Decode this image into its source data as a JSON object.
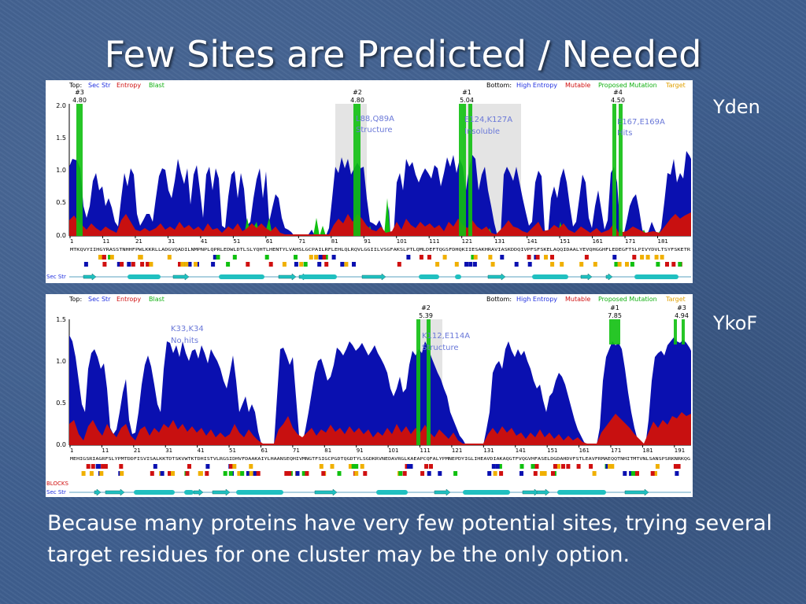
{
  "slide": {
    "title": "Few Sites are Predicted / Needed",
    "body": "Because many proteins have very few potential sites, trying several target residues for one cluster may be the only option."
  },
  "legend": {
    "top_label": "Top:",
    "sec_str": "Sec Str",
    "entropy": "Entropy",
    "blast": "Blast",
    "bottom_label": "Bottom:",
    "high_entropy": "High Entropy",
    "mutable": "Mutable",
    "proposed_mutation": "Proposed Mutation",
    "target": "Target"
  },
  "colors": {
    "entropy": "#0a10b0",
    "mutable": "#d01010",
    "blast": "#10c010",
    "target": "#f0b000",
    "secstr": "#20c0c0"
  },
  "panels": [
    {
      "side_label": "Yden",
      "y_ticks": [
        "2.0",
        "1.5",
        "1.0",
        "0.5",
        "0.0"
      ],
      "x_ticks": [
        "1",
        "11",
        "21",
        "31",
        "41",
        "51",
        "61",
        "71",
        "81",
        "91",
        "101",
        "111",
        "121",
        "131",
        "141",
        "151",
        "161",
        "171",
        "181"
      ],
      "sequence": "MTKQVYIIHGYRASSTNHHFPWLKKRLLADGVQADILNMPNPLQPRLEDWLDTLSLYQHTLHENTYLVAHSLGCPAILRFLEHLQLRQVLGGIILVSGFAKSLPTLQMLDEFTQGSFDHQKIIESAKHRAVIASKDDQIVPFSFSKELAQQIDAALYEVQHGGHFLEDEGFTSLPIVYDVLTSYFSKETR",
      "sites": [
        {
          "rank": "#3",
          "score": "4.80"
        },
        {
          "rank": "#2",
          "score": "4.80"
        },
        {
          "rank": "#1",
          "score": "5.04"
        },
        {
          "rank": "#4",
          "score": "4.50"
        }
      ],
      "annotations": [
        {
          "line1": "L88,Q89A",
          "line2": "Structure"
        },
        {
          "line1": "E124,K127A",
          "line2": "Insoluble"
        },
        {
          "line1": "E167,E169A",
          "line2": "Hits"
        }
      ],
      "track_label": "Sec Str"
    },
    {
      "side_label": "YkoF",
      "y_ticks": [
        "1.5",
        "1.0",
        "0.5",
        "0.0"
      ],
      "x_ticks": [
        "1",
        "11",
        "21",
        "31",
        "41",
        "51",
        "61",
        "71",
        "81",
        "91",
        "101",
        "111",
        "121",
        "131",
        "141",
        "151",
        "161",
        "171",
        "181",
        "191"
      ],
      "sequence": "MEHIGSRIAGRFSLYPMTDDFISVISALKKTDTSKVWTKTDHISTVLRGSIDHVFDAAKAIYLHAANSEQHIVMNGTFSIGCPGDTQGDTYLSGDKRVNEDAVRGLKAEAPCQFALYPMNEPDYIGLIHEAVDIAKAQGTFVQGVHFASELDGDAHDVFSTLEAVFRMAEQQTNHITMTVNLSANSPSRKNRKQG",
      "sites": [
        {
          "rank": "#2",
          "score": "5.39"
        },
        {
          "rank": "#1",
          "score": "7.85"
        },
        {
          "rank": "#3",
          "score": "4.94"
        }
      ],
      "annotations": [
        {
          "line1": "K33,K34",
          "line2": "No hits"
        },
        {
          "line1": "K112,E114A",
          "line2": "Structure"
        }
      ],
      "blocks_label": "BLOCKS",
      "track_label": "Sec Str"
    }
  ]
}
